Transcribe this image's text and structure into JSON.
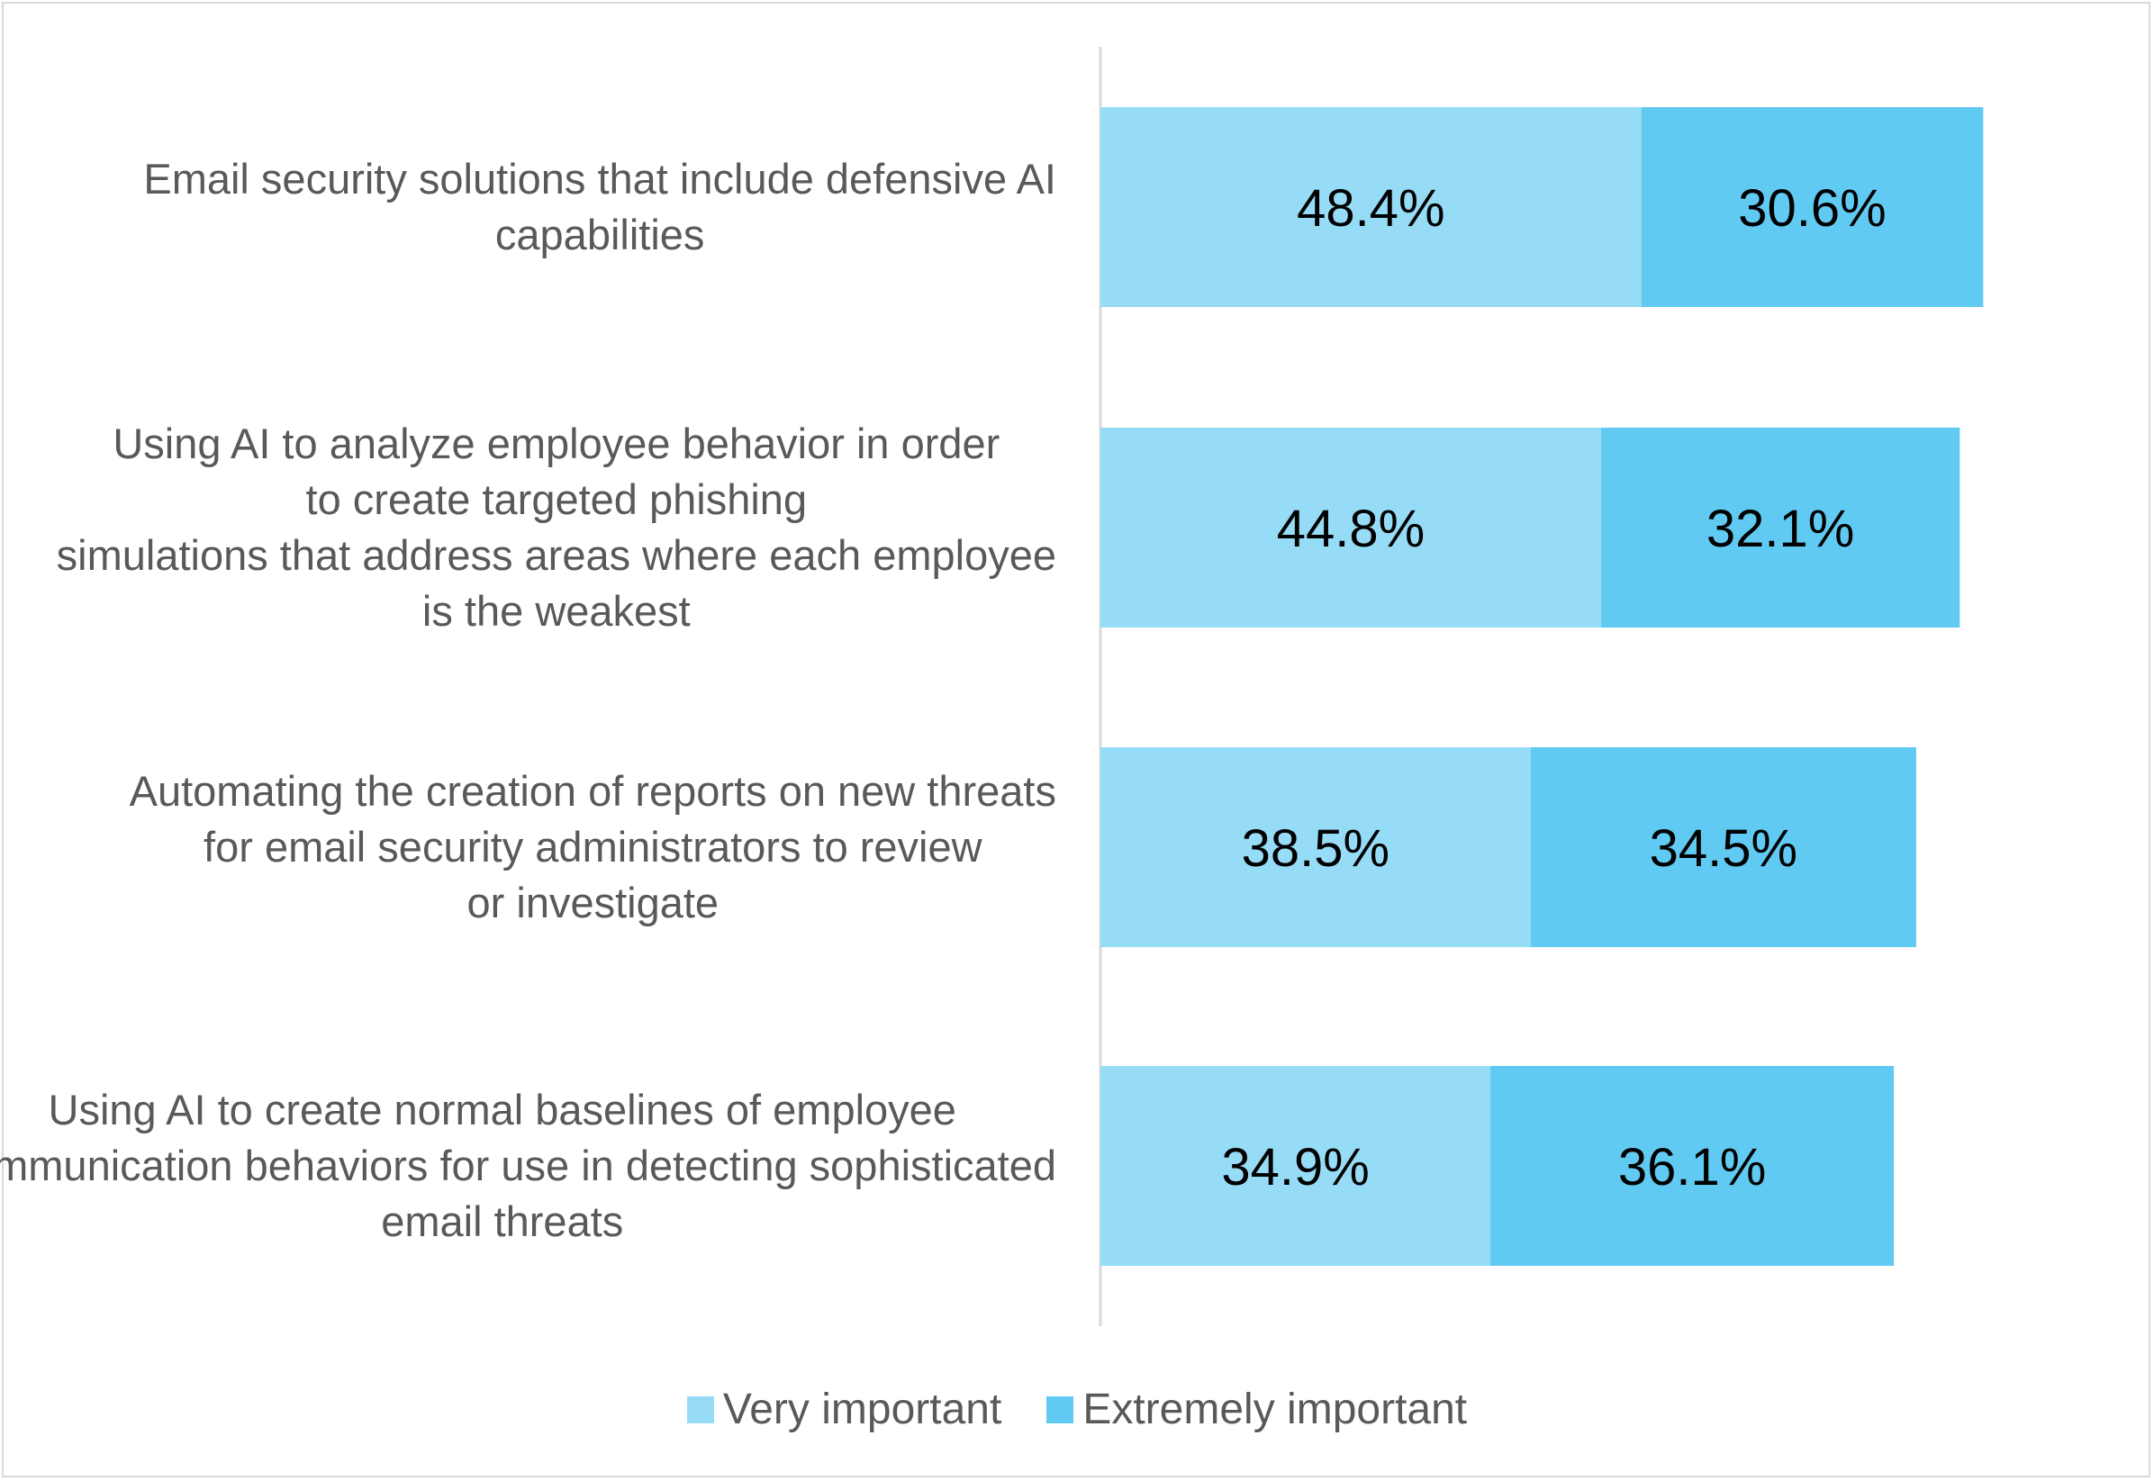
{
  "chart_data": {
    "type": "bar",
    "orientation": "horizontal",
    "stacked": true,
    "categories": [
      "Email security solutions that include defensive AI capabilities",
      "Using AI to analyze employee behavior in order to create targeted phishing simulations that address areas where each employee is the weakest",
      "Automating the creation of reports on new threats for email security administrators to review or investigate",
      "Using AI to create normal baselines of employee communication behaviors for use in detecting sophisticated email threats"
    ],
    "series": [
      {
        "name": "Very important",
        "values": [
          48.4,
          44.8,
          38.5,
          34.9
        ],
        "labels": [
          "48.4%",
          "44.8%",
          "38.5%",
          "34.9%"
        ],
        "color": "#97dcf7"
      },
      {
        "name": "Extremely important",
        "values": [
          30.6,
          32.1,
          34.5,
          36.1
        ],
        "labels": [
          "30.6%",
          "32.1%",
          "34.5%",
          "36.1%"
        ],
        "color": "#61caf2"
      }
    ],
    "xlim": [
      0,
      100
    ],
    "grid": false,
    "legend": "bottom"
  }
}
